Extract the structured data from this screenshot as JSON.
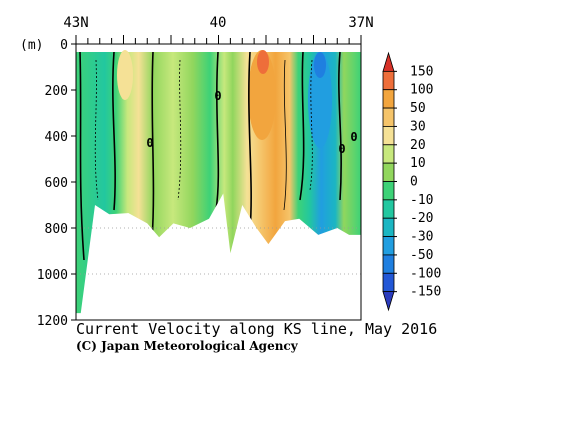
{
  "chart_data": {
    "type": "heatmap",
    "title": "Current Velocity along KS line, May 2016",
    "credit": "(C) Japan Meteorological Agency",
    "yunit": "(m)",
    "x_top_labels": [
      "43N",
      "40",
      "37N"
    ],
    "x_range_lat": [
      43,
      37
    ],
    "y_range_m": [
      0,
      1200
    ],
    "y_ticks": [
      0,
      200,
      400,
      600,
      800,
      1000,
      1200
    ],
    "contour_zero_labels": [
      "0",
      "0",
      "0",
      "0"
    ],
    "colorbar": {
      "labels": [
        "150",
        "100",
        "50",
        "30",
        "20",
        "10",
        "0",
        "-10",
        "-20",
        "-30",
        "-50",
        "-100",
        "-150"
      ],
      "colors": [
        "#d73228",
        "#ee6e3a",
        "#f2a53e",
        "#f5c46a",
        "#f5e196",
        "#c7e87d",
        "#91d65d",
        "#3dd277",
        "#22c7a0",
        "#1bb6c2",
        "#219ee0",
        "#1f7fe0",
        "#2257d6",
        "#2a3bbd"
      ]
    },
    "bottom_profile_m": [
      {
        "lat": 42.9,
        "depth": 1170
      },
      {
        "lat": 42.6,
        "depth": 700
      },
      {
        "lat": 42.3,
        "depth": 740
      },
      {
        "lat": 41.9,
        "depth": 735
      },
      {
        "lat": 41.5,
        "depth": 780
      },
      {
        "lat": 41.25,
        "depth": 840
      },
      {
        "lat": 40.95,
        "depth": 780
      },
      {
        "lat": 40.6,
        "depth": 800
      },
      {
        "lat": 40.2,
        "depth": 760
      },
      {
        "lat": 39.9,
        "depth": 650
      },
      {
        "lat": 39.75,
        "depth": 910
      },
      {
        "lat": 39.5,
        "depth": 700
      },
      {
        "lat": 39.2,
        "depth": 800
      },
      {
        "lat": 38.95,
        "depth": 870
      },
      {
        "lat": 38.6,
        "depth": 770
      },
      {
        "lat": 38.3,
        "depth": 760
      },
      {
        "lat": 37.9,
        "depth": 830
      },
      {
        "lat": 37.5,
        "depth": 800
      },
      {
        "lat": 37.25,
        "depth": 830
      }
    ]
  }
}
